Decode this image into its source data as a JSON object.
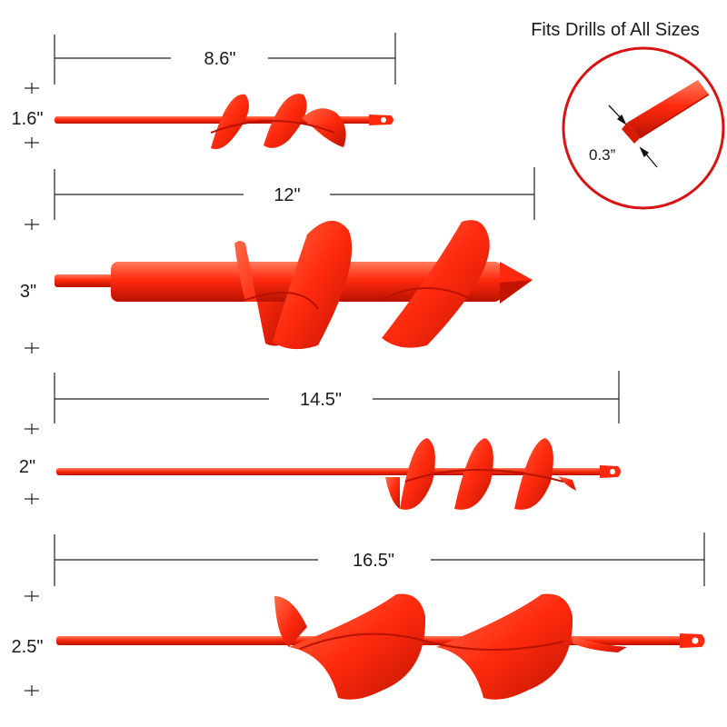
{
  "header": {
    "text": "Fits Drills of All Sizes"
  },
  "inset": {
    "shank_size": "0.3”"
  },
  "augers": [
    {
      "length": "8.6\"",
      "diameter": "1.6\""
    },
    {
      "length": "12\"",
      "diameter": "3\""
    },
    {
      "length": "14.5\"",
      "diameter": "2\""
    },
    {
      "length": "16.5\"",
      "diameter": "2.5\""
    }
  ],
  "colors": {
    "auger": "#ff2a0e",
    "auger_dark": "#c41400",
    "auger_light": "#ff7a5c",
    "inset_ring": "#d61414",
    "dimension_line": "#222222"
  }
}
